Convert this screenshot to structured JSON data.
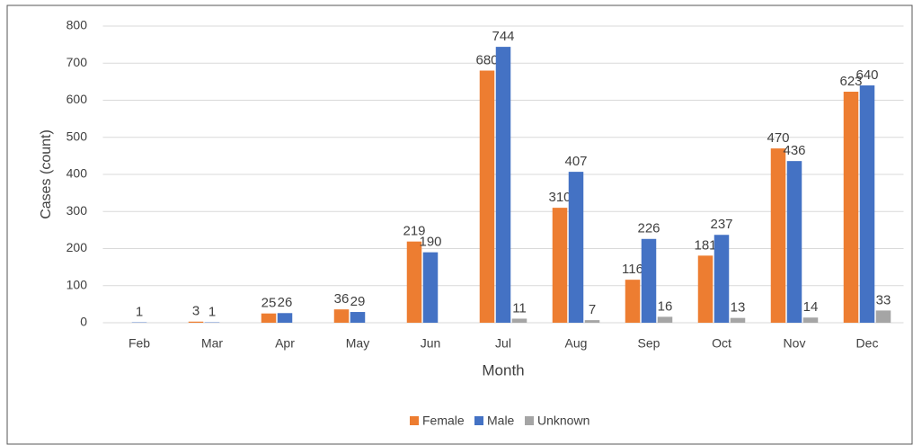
{
  "chart_data": {
    "type": "bar",
    "x_label": "Month",
    "y_label": "Cases (count)",
    "categories": [
      "Feb",
      "Mar",
      "Apr",
      "May",
      "Jun",
      "Jul",
      "Aug",
      "Sep",
      "Oct",
      "Nov",
      "Dec"
    ],
    "series": [
      {
        "name": "Female",
        "color": "#ed7d31",
        "values": [
          null,
          3,
          25,
          36,
          219,
          680,
          310,
          116,
          181,
          470,
          623
        ]
      },
      {
        "name": "Male",
        "color": "#4472c4",
        "values": [
          1,
          1,
          26,
          29,
          190,
          744,
          407,
          226,
          237,
          436,
          640
        ]
      },
      {
        "name": "Unknown",
        "color": "#a5a5a5",
        "values": [
          null,
          null,
          null,
          null,
          null,
          11,
          7,
          16,
          13,
          14,
          33
        ]
      }
    ],
    "ylim": [
      0,
      800
    ],
    "yticks": [
      0,
      100,
      200,
      300,
      400,
      500,
      600,
      700,
      800
    ],
    "grid": true,
    "legend": "bottom"
  }
}
